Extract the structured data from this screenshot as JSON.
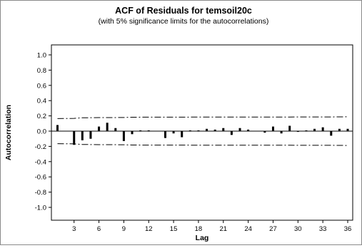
{
  "chart_data": {
    "type": "bar",
    "title": "ACF of Residuals for temsoil20c",
    "subtitle": "(with 5% significance limits for the autocorrelations)",
    "xlabel": "Lag",
    "ylabel": "Autocorrelation",
    "ylim": [
      -1.0,
      1.0
    ],
    "xlim": [
      0,
      36
    ],
    "yticks": [
      "1.0",
      "0.8",
      "0.6",
      "0.4",
      "0.2",
      "0.0",
      "-0.2",
      "-0.4",
      "-0.6",
      "-0.8",
      "-1.0"
    ],
    "xticks": [
      "3",
      "6",
      "9",
      "12",
      "15",
      "18",
      "21",
      "24",
      "27",
      "30",
      "33",
      "36"
    ],
    "lags": [
      1,
      2,
      3,
      4,
      5,
      6,
      7,
      8,
      9,
      10,
      11,
      12,
      13,
      14,
      15,
      16,
      17,
      18,
      19,
      20,
      21,
      22,
      23,
      24,
      25,
      26,
      27,
      28,
      29,
      30,
      31,
      32,
      33,
      34,
      35,
      36
    ],
    "values": [
      0.08,
      0.0,
      -0.18,
      -0.12,
      -0.1,
      0.06,
      0.11,
      0.04,
      -0.13,
      -0.04,
      0.01,
      0.01,
      0.0,
      -0.09,
      -0.03,
      -0.08,
      0.01,
      0.01,
      0.03,
      0.02,
      0.04,
      -0.05,
      0.04,
      0.02,
      0.0,
      -0.02,
      0.06,
      -0.03,
      0.07,
      -0.01,
      0.01,
      0.03,
      0.05,
      -0.06,
      0.03,
      0.03
    ],
    "significance_limits": {
      "upper": [
        0.165,
        0.166,
        0.167,
        0.175,
        0.176,
        0.177,
        0.177,
        0.178,
        0.179,
        0.182,
        0.183,
        0.183,
        0.183,
        0.183,
        0.183,
        0.183,
        0.184,
        0.184,
        0.184,
        0.184,
        0.184,
        0.184,
        0.184,
        0.184,
        0.184,
        0.184,
        0.185,
        0.185,
        0.185,
        0.186,
        0.186,
        0.186,
        0.186,
        0.186,
        0.187,
        0.188
      ],
      "lower": [
        -0.165,
        -0.166,
        -0.167,
        -0.175,
        -0.176,
        -0.177,
        -0.177,
        -0.178,
        -0.179,
        -0.182,
        -0.183,
        -0.183,
        -0.183,
        -0.183,
        -0.183,
        -0.183,
        -0.184,
        -0.184,
        -0.184,
        -0.184,
        -0.184,
        -0.184,
        -0.184,
        -0.184,
        -0.184,
        -0.184,
        -0.185,
        -0.185,
        -0.185,
        -0.186,
        -0.186,
        -0.186,
        -0.186,
        -0.186,
        -0.187,
        -0.188
      ]
    },
    "grid": false,
    "legend": "none",
    "colors": {
      "bars": "#000000",
      "limits": "#000000",
      "frame": "#8a8a8a"
    }
  }
}
